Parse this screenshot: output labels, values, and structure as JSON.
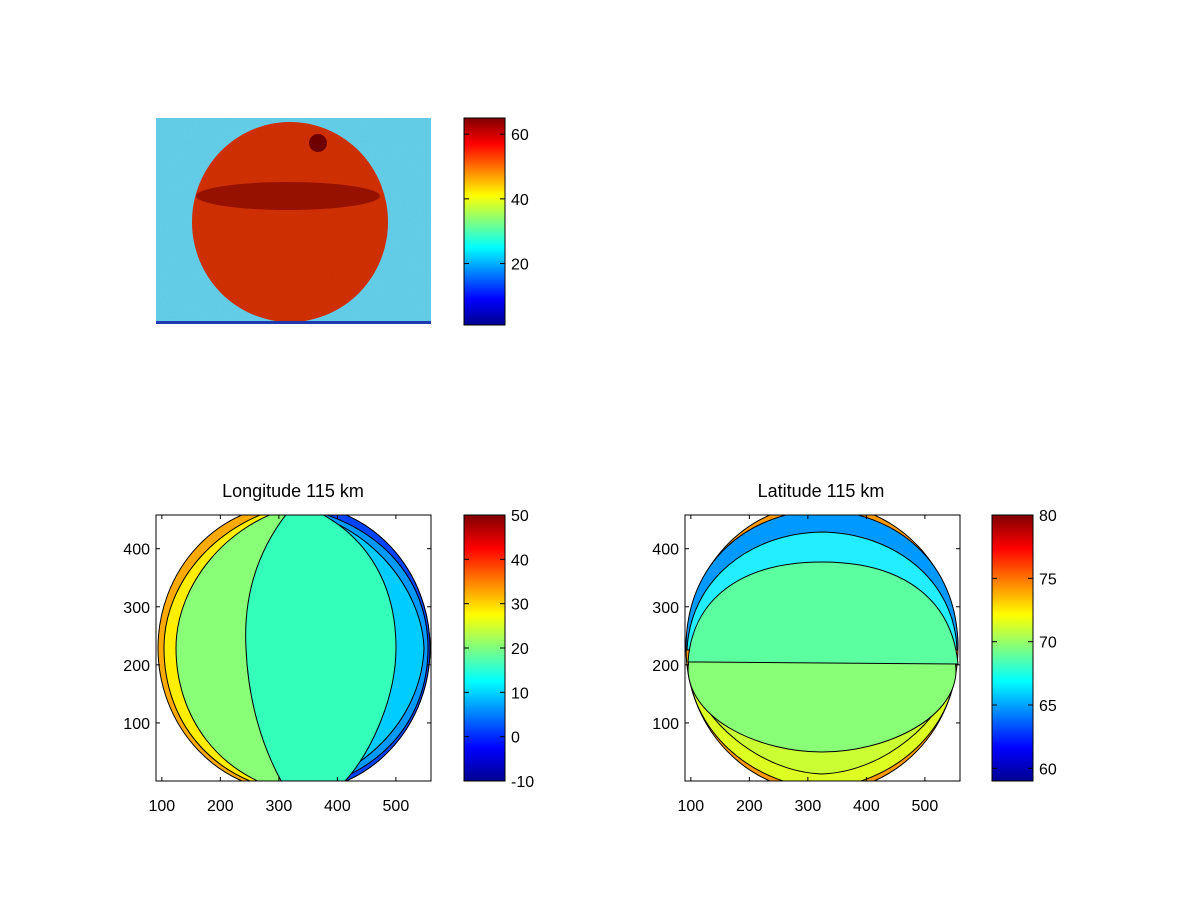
{
  "chart_data": [
    {
      "type": "heatmap",
      "title": "",
      "image_text": "",
      "colormap": "jet",
      "description_free": true,
      "colorbar": {
        "range": [
          1,
          65
        ],
        "ticks": [
          20,
          40,
          60
        ],
        "tick_labels": [
          "20",
          "40",
          "60"
        ]
      },
      "background_level": 28,
      "disk_level": 60
    },
    {
      "type": "contour",
      "title": "Longitude 115 km",
      "colormap": "jet",
      "x_ticks": [
        100,
        200,
        300,
        400,
        500
      ],
      "x_tick_labels": [
        "100",
        "200",
        "300",
        "400",
        "500"
      ],
      "y_ticks": [
        100,
        200,
        300,
        400
      ],
      "y_tick_labels": [
        "100",
        "200",
        "300",
        "400"
      ],
      "xlim": [
        90,
        560
      ],
      "ylim": [
        0,
        458
      ],
      "colorbar": {
        "range": [
          -10,
          50
        ],
        "ticks": [
          50,
          40,
          30,
          20,
          10,
          0,
          -10
        ],
        "tick_labels": [
          "50",
          "40",
          "30",
          "20",
          "10",
          "0",
          "-10"
        ]
      },
      "bands": [
        {
          "level": 40,
          "color": "#ffaa00"
        },
        {
          "level": 32,
          "color": "#ffee00"
        },
        {
          "level": 24,
          "color": "#88ff77"
        },
        {
          "level": 16,
          "color": "#33ffbb"
        },
        {
          "level": 12,
          "color": "#00ccff"
        },
        {
          "level": 8,
          "color": "#0099ff"
        },
        {
          "level": 2,
          "color": "#0044ff"
        }
      ]
    },
    {
      "type": "contour",
      "title": "Latitude 115 km",
      "colormap": "jet",
      "x_ticks": [
        100,
        200,
        300,
        400,
        500
      ],
      "x_tick_labels": [
        "100",
        "200",
        "300",
        "400",
        "500"
      ],
      "y_ticks": [
        100,
        200,
        300,
        400
      ],
      "y_tick_labels": [
        "100",
        "200",
        "300",
        "400"
      ],
      "xlim": [
        90,
        560
      ],
      "ylim": [
        0,
        458
      ],
      "colorbar": {
        "range": [
          59,
          80
        ],
        "ticks": [
          80,
          75,
          70,
          65,
          60
        ],
        "tick_labels": [
          "80",
          "75",
          "70",
          "65",
          "60"
        ]
      },
      "bands": [
        {
          "level": 71,
          "color": "#88ff77"
        },
        {
          "level": 69,
          "color": "#5cffa0"
        },
        {
          "level": 73,
          "color": "#ddff22"
        },
        {
          "level": 67,
          "color": "#22eeff"
        },
        {
          "level": 66,
          "color": "#0099ff"
        }
      ]
    }
  ]
}
